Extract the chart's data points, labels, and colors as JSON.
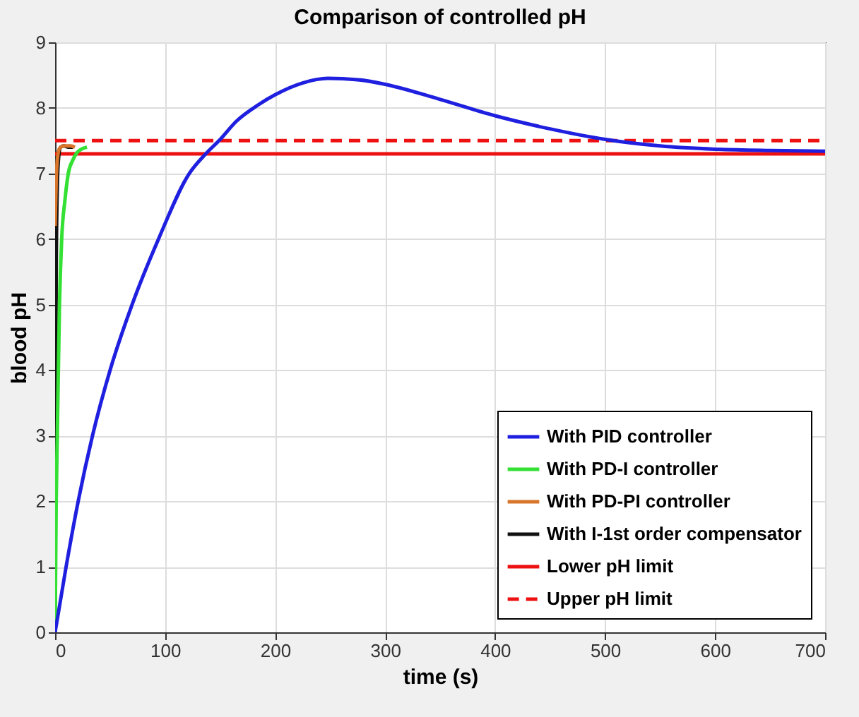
{
  "chart_data": {
    "type": "line",
    "title": "Comparison of controlled pH",
    "xlabel": "time (s)",
    "ylabel": "blood pH",
    "xlim": [
      0,
      700
    ],
    "ylim": [
      0,
      9
    ],
    "xticks": [
      0,
      100,
      200,
      300,
      400,
      500,
      600,
      700
    ],
    "yticks": [
      0,
      1,
      2,
      3,
      4,
      5,
      6,
      7,
      8,
      9
    ],
    "grid": true,
    "legend": "bottom right",
    "marker": "none",
    "series": [
      {
        "name": "With PID controller",
        "color": "#1f1fe0",
        "line_style": "solid",
        "x": [
          0,
          10,
          21,
          34,
          50,
          70,
          94,
          122,
          137,
          149,
          165,
          185,
          200,
          225,
          248,
          275,
          300,
          350,
          400,
          450,
          500,
          550,
          600,
          650,
          700
        ],
        "values": [
          0,
          1,
          2,
          3,
          4,
          5,
          6,
          7,
          7.3,
          7.5,
          7.8,
          8.05,
          8.2,
          8.38,
          8.45,
          8.43,
          8.36,
          8.13,
          7.88,
          7.68,
          7.52,
          7.42,
          7.37,
          7.35,
          7.34
        ]
      },
      {
        "name": "With PD-I controller",
        "color": "#33e033",
        "line_style": "solid",
        "x": [
          0,
          1,
          2,
          4,
          6,
          9,
          12,
          16,
          20,
          25,
          29
        ],
        "values": [
          0,
          2,
          3,
          5,
          6,
          6.6,
          7,
          7.2,
          7.32,
          7.38,
          7.4
        ]
      },
      {
        "name": "With PD-PI controller",
        "color": "#d9742b",
        "line_style": "solid",
        "x": [
          0,
          1,
          2,
          4,
          8,
          14,
          18
        ],
        "values": [
          6.2,
          6.9,
          7.2,
          7.38,
          7.42,
          7.42,
          7.4
        ]
      },
      {
        "name": "With I-1st order compensator",
        "color": "#111111",
        "line_style": "solid",
        "x": [
          0,
          0.5,
          1,
          2,
          3,
          5,
          8,
          12,
          16
        ],
        "values": [
          0,
          3,
          5.5,
          6.8,
          7.2,
          7.4,
          7.42,
          7.4,
          7.4
        ]
      },
      {
        "name": "Lower pH limit",
        "color": "#ee1111",
        "line_style": "solid",
        "x": [
          0,
          700
        ],
        "values": [
          7.3,
          7.3
        ]
      },
      {
        "name": "Upper pH limit",
        "color": "#ee1111",
        "line_style": "dashed",
        "x": [
          0,
          700
        ],
        "values": [
          7.5,
          7.5
        ]
      }
    ]
  }
}
